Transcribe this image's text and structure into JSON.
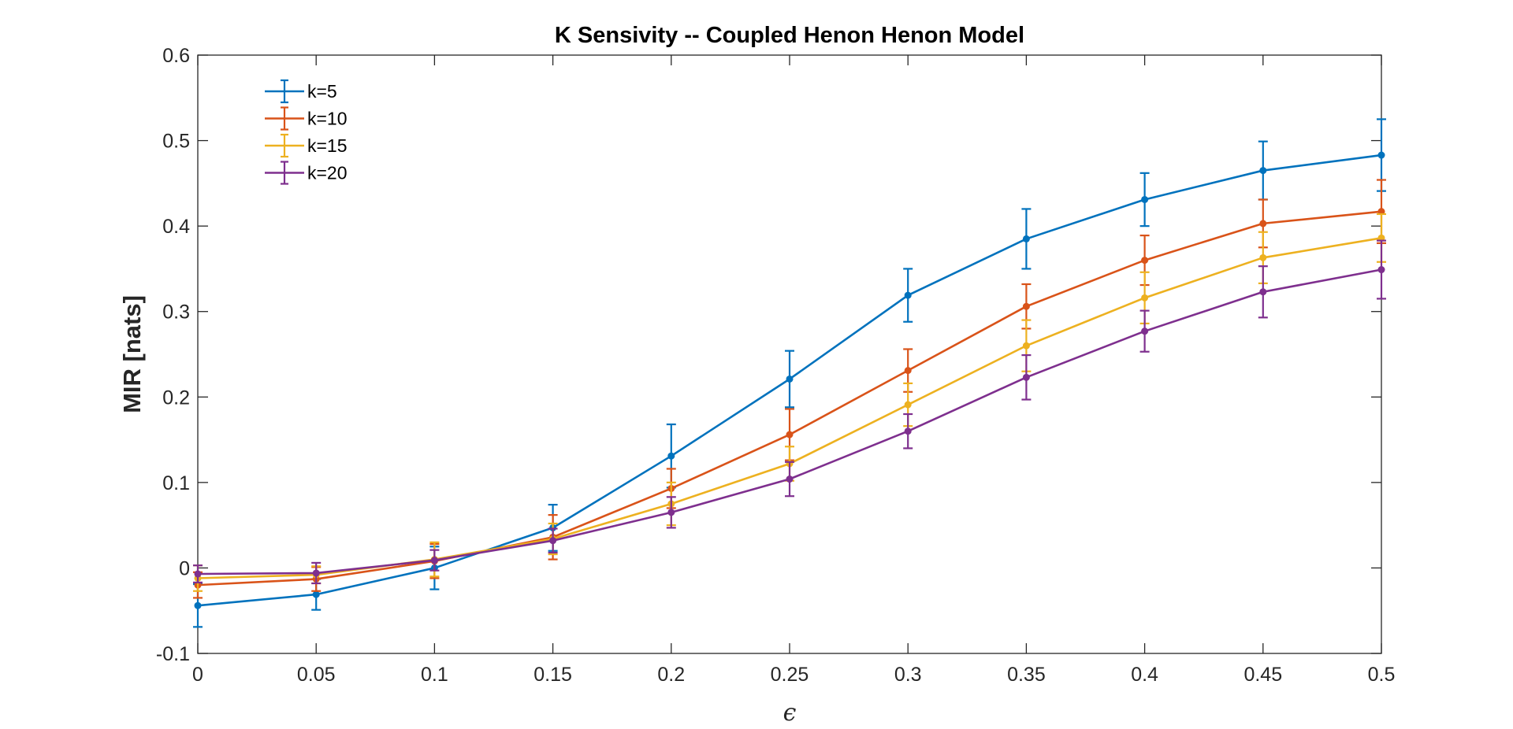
{
  "chart_data": {
    "type": "line",
    "title": "K Sensivity -- Coupled Henon Henon Model",
    "xlabel": "ϵ",
    "ylabel": "MIR [nats]",
    "x": [
      0,
      0.05,
      0.1,
      0.15,
      0.2,
      0.25,
      0.3,
      0.35,
      0.4,
      0.45,
      0.5
    ],
    "xlim": [
      0,
      0.5
    ],
    "ylim": [
      -0.1,
      0.6
    ],
    "xticks": [
      0,
      0.05,
      0.1,
      0.15,
      0.2,
      0.25,
      0.3,
      0.35,
      0.4,
      0.45,
      0.5
    ],
    "xtick_labels": [
      "0",
      "0.05",
      "0.1",
      "0.15",
      "0.2",
      "0.25",
      "0.3",
      "0.35",
      "0.4",
      "0.45",
      "0.5"
    ],
    "yticks": [
      -0.1,
      0,
      0.1,
      0.2,
      0.3,
      0.4,
      0.5,
      0.6
    ],
    "ytick_labels": [
      "-0.1",
      "0",
      "0.1",
      "0.2",
      "0.3",
      "0.4",
      "0.5",
      "0.6"
    ],
    "grid": false,
    "legend_position": "top-left",
    "error_bars": true,
    "series": [
      {
        "name": "k=5",
        "color": "#0072BD",
        "values": [
          -0.044,
          -0.031,
          0.0,
          0.047,
          0.131,
          0.221,
          0.319,
          0.385,
          0.431,
          0.465,
          0.483
        ],
        "error": [
          0.025,
          0.018,
          0.025,
          0.027,
          0.037,
          0.033,
          0.031,
          0.035,
          0.031,
          0.034,
          0.042
        ]
      },
      {
        "name": "k=10",
        "color": "#D95319",
        "values": [
          -0.02,
          -0.013,
          0.008,
          0.036,
          0.093,
          0.156,
          0.231,
          0.306,
          0.36,
          0.403,
          0.417
        ],
        "error": [
          0.015,
          0.014,
          0.02,
          0.026,
          0.023,
          0.03,
          0.025,
          0.026,
          0.029,
          0.028,
          0.037
        ]
      },
      {
        "name": "k=15",
        "color": "#EDB120",
        "values": [
          -0.012,
          -0.008,
          0.01,
          0.034,
          0.075,
          0.122,
          0.191,
          0.26,
          0.316,
          0.363,
          0.386
        ],
        "error": [
          0.015,
          0.01,
          0.02,
          0.018,
          0.025,
          0.02,
          0.025,
          0.03,
          0.03,
          0.03,
          0.028
        ]
      },
      {
        "name": "k=20",
        "color": "#7E2F8E",
        "values": [
          -0.007,
          -0.006,
          0.009,
          0.032,
          0.065,
          0.104,
          0.16,
          0.223,
          0.277,
          0.323,
          0.349
        ],
        "error": [
          0.01,
          0.012,
          0.012,
          0.014,
          0.018,
          0.02,
          0.02,
          0.026,
          0.024,
          0.03,
          0.034
        ]
      }
    ]
  }
}
